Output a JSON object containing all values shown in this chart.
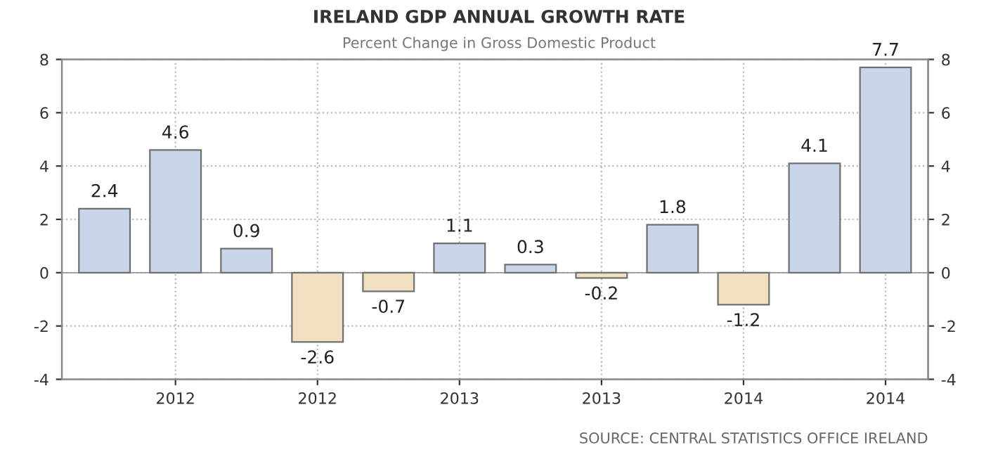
{
  "chart_data": {
    "type": "bar",
    "title": "IRELAND GDP ANNUAL GROWTH RATE",
    "subtitle": "Percent Change in Gross Domestic Product",
    "categories": [
      null,
      "2012",
      null,
      "2012",
      null,
      "2013",
      null,
      "2013",
      null,
      "2014",
      null,
      "2014"
    ],
    "values": [
      2.4,
      4.6,
      0.9,
      -2.6,
      -0.7,
      1.1,
      0.3,
      -0.2,
      1.8,
      -1.2,
      4.1,
      7.7
    ],
    "colors": [
      "#c9d6ea",
      "#c9d6ea",
      "#c9d6ea",
      "#f0dfc0",
      "#f0dfc0",
      "#c9d6ea",
      "#c9d6ea",
      "#f0dfc0",
      "#c9d6ea",
      "#f0dfc0",
      "#c9d6ea",
      "#c9d6ea"
    ],
    "ylim": [
      -4,
      8
    ],
    "yticks": [
      -4,
      -2,
      0,
      2,
      4,
      6,
      8
    ],
    "y2lim": [
      -4,
      8
    ],
    "y2ticks": [
      -4,
      -2,
      0,
      2,
      4,
      6,
      8
    ],
    "data_labels": true,
    "grid": true,
    "annotations": [
      "SOURCE: CENTRAL STATISTICS OFFICE IRELAND"
    ]
  }
}
